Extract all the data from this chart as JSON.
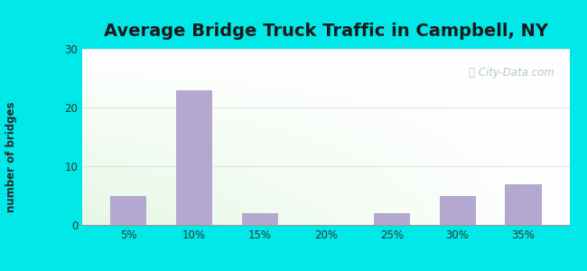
{
  "title": "Average Bridge Truck Traffic in Campbell, NY",
  "categories": [
    "5%",
    "10%",
    "15%",
    "20%",
    "25%",
    "30%",
    "35%"
  ],
  "values": [
    5,
    23,
    2,
    0,
    2,
    5,
    7
  ],
  "bar_color": "#b5a8d0",
  "ylabel": "number of bridges",
  "ylim": [
    0,
    30
  ],
  "yticks": [
    0,
    10,
    20,
    30
  ],
  "title_fontsize": 14,
  "label_fontsize": 8.5,
  "tick_fontsize": 8.5,
  "outer_bg_color": "#00e8e8",
  "watermark_text": "City-Data.com",
  "watermark_color": "#a8bfc0",
  "ylabel_color": "#2a2a2a",
  "title_color": "#1a1a1a",
  "tick_color": "#333333"
}
